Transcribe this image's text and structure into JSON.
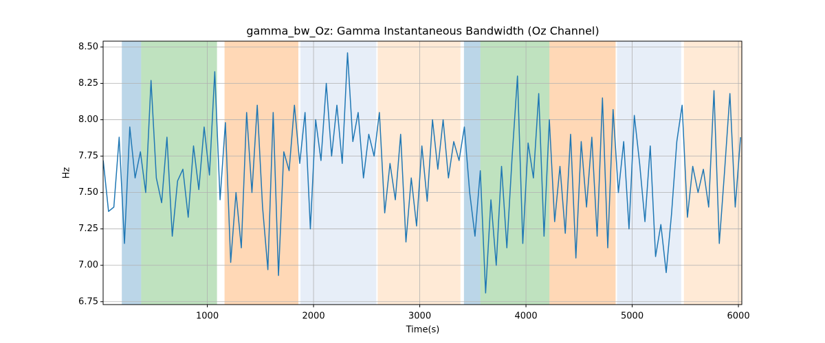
{
  "chart_data": {
    "type": "line",
    "title": "gamma_bw_Oz: Gamma Instantaneous Bandwidth (Oz Channel)",
    "xlabel": "Time(s)",
    "ylabel": "Hz",
    "xlim": [
      19,
      6032
    ],
    "ylim": [
      6.73,
      8.54
    ],
    "xticks": [
      1000,
      2000,
      3000,
      4000,
      5000,
      6000
    ],
    "yticks": [
      6.75,
      {
        "value": 7,
        "label": "7.00"
      },
      7.25,
      {
        "value": 7.5,
        "label": "7.50"
      },
      7.75,
      {
        "value": 8,
        "label": "8.00"
      },
      8.25,
      {
        "value": 8.5,
        "label": "8.50"
      }
    ],
    "grid": true,
    "spans": [
      {
        "start": 195,
        "end": 377,
        "color": "#1f77b4",
        "opacity": 0.3
      },
      {
        "start": 377,
        "end": 1091,
        "color": "#2ca02c",
        "opacity": 0.3
      },
      {
        "start": 1162,
        "end": 1857,
        "color": "#ff7f0e",
        "opacity": 0.3
      },
      {
        "start": 1877,
        "end": 2591,
        "color": "#aec7e8",
        "opacity": 0.3
      },
      {
        "start": 2604,
        "end": 3383,
        "color": "#ffbb78",
        "opacity": 0.3
      },
      {
        "start": 3416,
        "end": 3571,
        "color": "#1f77b4",
        "opacity": 0.3
      },
      {
        "start": 3571,
        "end": 4221,
        "color": "#2ca02c",
        "opacity": 0.3
      },
      {
        "start": 4221,
        "end": 4844,
        "color": "#ff7f0e",
        "opacity": 0.3
      },
      {
        "start": 4857,
        "end": 5461,
        "color": "#aec7e8",
        "opacity": 0.3
      },
      {
        "start": 5487,
        "end": 6032,
        "color": "#ffbb78",
        "opacity": 0.3
      }
    ],
    "x": [
      20,
      70,
      120,
      170,
      220,
      270,
      320,
      370,
      420,
      470,
      520,
      570,
      620,
      670,
      720,
      770,
      820,
      870,
      920,
      970,
      1020,
      1070,
      1120,
      1170,
      1220,
      1270,
      1320,
      1370,
      1420,
      1470,
      1520,
      1570,
      1620,
      1670,
      1720,
      1770,
      1820,
      1870,
      1920,
      1970,
      2020,
      2070,
      2120,
      2170,
      2220,
      2270,
      2320,
      2370,
      2420,
      2470,
      2520,
      2570,
      2620,
      2670,
      2720,
      2770,
      2820,
      2870,
      2920,
      2970,
      3020,
      3070,
      3120,
      3170,
      3220,
      3270,
      3320,
      3370,
      3420,
      3470,
      3520,
      3570,
      3620,
      3670,
      3720,
      3770,
      3820,
      3870,
      3920,
      3970,
      4020,
      4070,
      4120,
      4170,
      4220,
      4270,
      4320,
      4370,
      4420,
      4470,
      4520,
      4570,
      4620,
      4670,
      4720,
      4770,
      4820,
      4870,
      4920,
      4970,
      5020,
      5070,
      5120,
      5170,
      5220,
      5270,
      5320,
      5370,
      5420,
      5470,
      5520,
      5570,
      5620,
      5670,
      5720,
      5770,
      5820,
      5870,
      5920,
      5970,
      6020
    ],
    "series": [
      {
        "color": "#1f77b4",
        "values": [
          7.72,
          7.37,
          7.4,
          7.88,
          7.15,
          7.95,
          7.6,
          7.78,
          7.5,
          8.27,
          7.6,
          7.43,
          7.88,
          7.2,
          7.58,
          7.66,
          7.33,
          7.82,
          7.52,
          7.95,
          7.62,
          8.33,
          7.45,
          7.98,
          7.02,
          7.5,
          7.12,
          8.05,
          7.5,
          8.1,
          7.4,
          6.97,
          8.05,
          6.93,
          7.78,
          7.65,
          8.1,
          7.7,
          8.05,
          7.25,
          8.0,
          7.72,
          8.25,
          7.75,
          8.1,
          7.7,
          8.46,
          7.85,
          8.05,
          7.6,
          7.9,
          7.75,
          8.05,
          7.36,
          7.7,
          7.45,
          7.9,
          7.16,
          7.6,
          7.27,
          7.82,
          7.44,
          8.0,
          7.66,
          8.0,
          7.6,
          7.85,
          7.72,
          7.95,
          7.5,
          7.2,
          7.65,
          6.81,
          7.45,
          7.0,
          7.68,
          7.12,
          7.75,
          8.3,
          7.15,
          7.84,
          7.6,
          8.18,
          7.2,
          8.0,
          7.3,
          7.68,
          7.22,
          7.9,
          7.05,
          7.85,
          7.4,
          7.88,
          7.2,
          8.15,
          7.12,
          8.07,
          7.5,
          7.85,
          7.25,
          8.03,
          7.7,
          7.3,
          7.82,
          7.06,
          7.28,
          6.95,
          7.35,
          7.85,
          8.1,
          7.33,
          7.68,
          7.5,
          7.66,
          7.4,
          8.2,
          7.15,
          7.65,
          8.18,
          7.4,
          7.88
        ]
      }
    ]
  }
}
